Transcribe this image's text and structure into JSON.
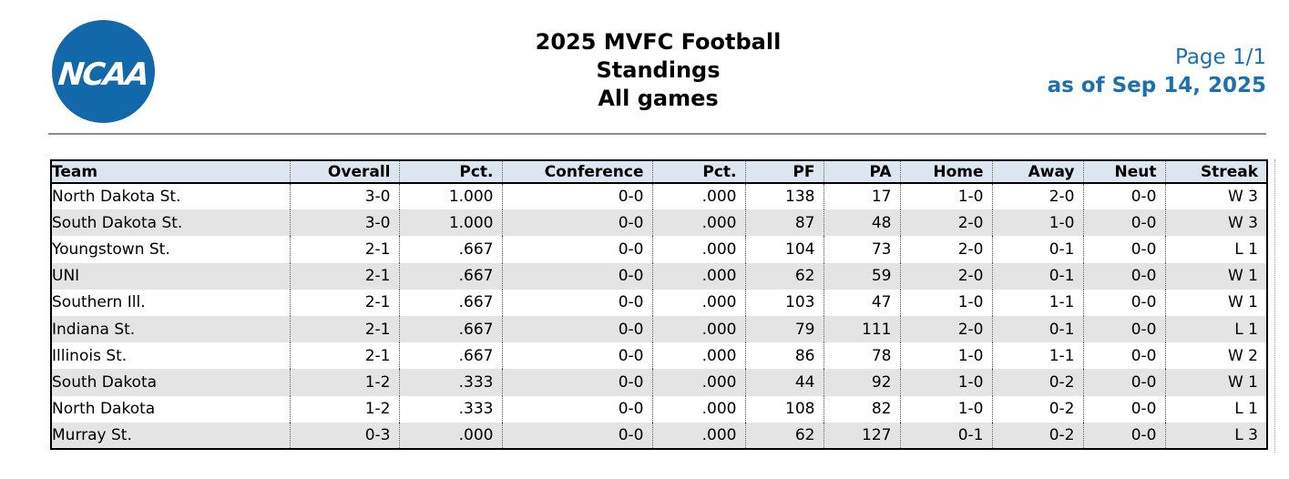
{
  "logo": {
    "wordmark": "NCAA",
    "registered_mark": "®"
  },
  "page": {
    "title_lines": [
      "2025 MVFC Football",
      "Standings",
      "All games"
    ],
    "page_indicator": "Page 1/1",
    "as_of_date": "as of Sep 14, 2025"
  },
  "colors": {
    "logo_blue": "#1268a9",
    "accent_blue": "#1e6fad",
    "header_row_bg": "#dce6f1",
    "stripe_bg": "#e4e4e4"
  },
  "standings": {
    "columns": [
      {
        "label": "Team",
        "align": "left"
      },
      {
        "label": "Overall",
        "align": "right"
      },
      {
        "label": "Pct.",
        "align": "right"
      },
      {
        "label": "Conference",
        "align": "right"
      },
      {
        "label": "Pct.",
        "align": "right"
      },
      {
        "label": "PF",
        "align": "right"
      },
      {
        "label": "PA",
        "align": "right"
      },
      {
        "label": "Home",
        "align": "right"
      },
      {
        "label": "Away",
        "align": "right"
      },
      {
        "label": "Neut",
        "align": "right"
      },
      {
        "label": "Streak",
        "align": "right"
      }
    ],
    "rows": [
      [
        "North Dakota St.",
        "3-0",
        "1.000",
        "0-0",
        ".000",
        "138",
        "17",
        "1-0",
        "2-0",
        "0-0",
        "W 3"
      ],
      [
        "South Dakota St.",
        "3-0",
        "1.000",
        "0-0",
        ".000",
        "87",
        "48",
        "2-0",
        "1-0",
        "0-0",
        "W 3"
      ],
      [
        "Youngstown St.",
        "2-1",
        ".667",
        "0-0",
        ".000",
        "104",
        "73",
        "2-0",
        "0-1",
        "0-0",
        "L 1"
      ],
      [
        "UNI",
        "2-1",
        ".667",
        "0-0",
        ".000",
        "62",
        "59",
        "2-0",
        "0-1",
        "0-0",
        "W 1"
      ],
      [
        "Southern Ill.",
        "2-1",
        ".667",
        "0-0",
        ".000",
        "103",
        "47",
        "1-0",
        "1-1",
        "0-0",
        "W 1"
      ],
      [
        "Indiana St.",
        "2-1",
        ".667",
        "0-0",
        ".000",
        "79",
        "111",
        "2-0",
        "0-1",
        "0-0",
        "L 1"
      ],
      [
        "Illinois St.",
        "2-1",
        ".667",
        "0-0",
        ".000",
        "86",
        "78",
        "1-0",
        "1-1",
        "0-0",
        "W 2"
      ],
      [
        "South Dakota",
        "1-2",
        ".333",
        "0-0",
        ".000",
        "44",
        "92",
        "1-0",
        "0-2",
        "0-0",
        "W 1"
      ],
      [
        "North Dakota",
        "1-2",
        ".333",
        "0-0",
        ".000",
        "108",
        "82",
        "1-0",
        "0-2",
        "0-0",
        "L 1"
      ],
      [
        "Murray St.",
        "0-3",
        ".000",
        "0-0",
        ".000",
        "62",
        "127",
        "0-1",
        "0-2",
        "0-0",
        "L 3"
      ]
    ]
  }
}
